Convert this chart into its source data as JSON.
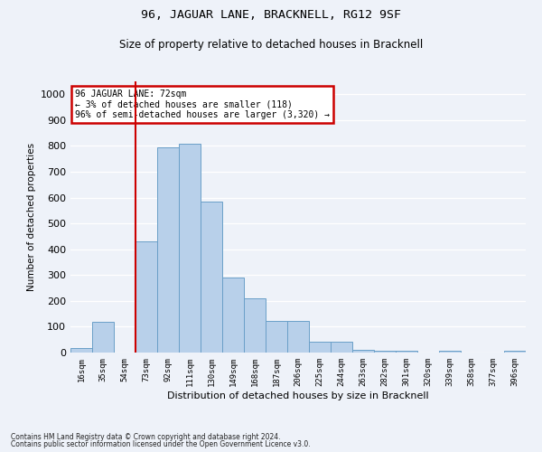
{
  "title": "96, JAGUAR LANE, BRACKNELL, RG12 9SF",
  "subtitle": "Size of property relative to detached houses in Bracknell",
  "xlabel": "Distribution of detached houses by size in Bracknell",
  "ylabel": "Number of detached properties",
  "bar_color": "#b8d0ea",
  "bar_edge_color": "#6a9fc8",
  "categories": [
    "16sqm",
    "35sqm",
    "54sqm",
    "73sqm",
    "92sqm",
    "111sqm",
    "130sqm",
    "149sqm",
    "168sqm",
    "187sqm",
    "206sqm",
    "225sqm",
    "244sqm",
    "263sqm",
    "282sqm",
    "301sqm",
    "320sqm",
    "339sqm",
    "358sqm",
    "377sqm",
    "396sqm"
  ],
  "values": [
    18,
    120,
    0,
    430,
    795,
    808,
    585,
    290,
    210,
    122,
    122,
    42,
    42,
    12,
    8,
    8,
    0,
    8,
    0,
    0,
    8
  ],
  "vline_index": 3,
  "vline_color": "#cc0000",
  "ylim": [
    0,
    1050
  ],
  "yticks": [
    0,
    100,
    200,
    300,
    400,
    500,
    600,
    700,
    800,
    900,
    1000
  ],
  "annotation_line1": "96 JAGUAR LANE: 72sqm",
  "annotation_line2": "← 3% of detached houses are smaller (118)",
  "annotation_line3": "96% of semi-detached houses are larger (3,320) →",
  "annotation_box_color": "#ffffff",
  "annotation_border_color": "#cc0000",
  "background_color": "#eef2f9",
  "grid_color": "#ffffff",
  "footer_line1": "Contains HM Land Registry data © Crown copyright and database right 2024.",
  "footer_line2": "Contains public sector information licensed under the Open Government Licence v3.0."
}
